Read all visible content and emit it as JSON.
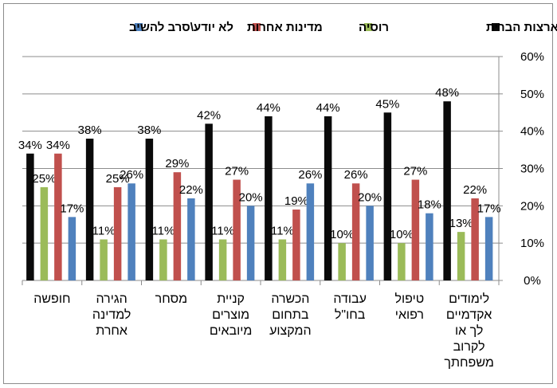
{
  "chart_data": {
    "type": "bar",
    "ylim": [
      0,
      60
    ],
    "yticks": [
      "0%",
      "10%",
      "20%",
      "30%",
      "40%",
      "50%",
      "60%"
    ],
    "grid": true,
    "legend_position": "top",
    "categories": [
      [
        "חופשה"
      ],
      [
        "הגירה",
        "למדינה",
        "אחרת"
      ],
      [
        "מסחר"
      ],
      [
        "קניית",
        "מוצרים",
        "מיובאים"
      ],
      [
        "הכשרה",
        "בתחום",
        "המקצוע"
      ],
      [
        "עבודה",
        "בחו\"ל"
      ],
      [
        "טיפול",
        "רפואי"
      ],
      [
        "לימודים",
        "אקדמיים",
        "לך או",
        "לקרוב",
        "משפחתך"
      ]
    ],
    "series": [
      {
        "name": "ארצות הברית",
        "color": "#0a0a0a",
        "values": [
          34,
          38,
          38,
          42,
          44,
          44,
          45,
          48
        ],
        "labels": [
          "34%",
          "38%",
          "38%",
          "42%",
          "44%",
          "44%",
          "45%",
          "48%"
        ]
      },
      {
        "name": "רוסיה",
        "color": "#9bbb59",
        "values": [
          25,
          11,
          11,
          11,
          11,
          10,
          10,
          13
        ],
        "labels": [
          "25%",
          "11%",
          "11%",
          "11%",
          "11%",
          "10%",
          "10%",
          "13%"
        ]
      },
      {
        "name": "מדינות אחרות",
        "color": "#c0504d",
        "values": [
          34,
          25,
          29,
          27,
          19,
          26,
          27,
          22
        ],
        "labels": [
          "34%",
          "25%",
          "29%",
          "27%",
          "19%",
          "26%",
          "27%",
          "22%"
        ]
      },
      {
        "name": "לא יודע\\סרב להשיב",
        "color": "#4f81bd",
        "values": [
          17,
          26,
          22,
          20,
          26,
          20,
          18,
          17
        ],
        "labels": [
          "17%",
          "26%",
          "22%",
          "20%",
          "26%",
          "20%",
          "18%",
          "17%"
        ]
      }
    ]
  }
}
